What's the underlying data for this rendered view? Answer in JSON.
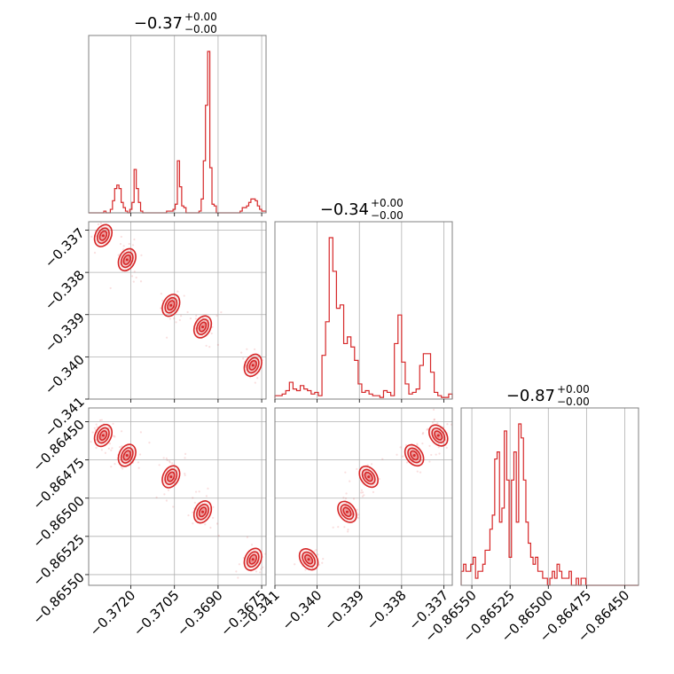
{
  "colors": {
    "accent": "#d62728",
    "grid": "#b0b0b0",
    "frame": "#808080"
  },
  "chart_data": {
    "type": "corner",
    "parameters": [
      {
        "title_value": "−0.37",
        "title_plus": "+0.00",
        "title_minus": "−0.00",
        "range": [
          -0.37345,
          -0.36735
        ],
        "ticks": [
          -0.372,
          -0.3705,
          -0.369,
          -0.3675
        ],
        "tick_labels": [
          "−0.3720",
          "−0.3705",
          "−0.3690",
          "−0.3675"
        ]
      },
      {
        "title_value": "−0.34",
        "title_plus": "+0.00",
        "title_minus": "−0.00",
        "range": [
          -0.341,
          -0.3368
        ],
        "ticks": [
          -0.341,
          -0.34,
          -0.339,
          -0.338,
          -0.337
        ],
        "tick_labels": [
          "−0.341",
          "−0.340",
          "−0.339",
          "−0.338",
          "−0.337"
        ]
      },
      {
        "title_value": "−0.87",
        "title_plus": "+0.00",
        "title_minus": "−0.00",
        "range": [
          -0.86557,
          -0.86441
        ],
        "ticks": [
          -0.8655,
          -0.86525,
          -0.865,
          -0.86475,
          -0.8645
        ],
        "tick_labels": [
          "−0.86550",
          "−0.86525",
          "−0.86500",
          "−0.86475",
          "−0.86450"
        ]
      }
    ],
    "histograms": [
      {
        "counts": [
          0,
          0,
          0,
          0,
          0,
          0,
          0,
          1,
          0,
          0,
          2,
          7,
          14,
          16,
          14,
          6,
          3,
          1,
          0,
          2,
          6,
          25,
          14,
          6,
          1,
          0,
          0,
          0,
          0,
          0,
          0,
          0,
          0,
          0,
          0,
          0,
          1,
          1,
          1,
          2,
          5,
          30,
          15,
          4,
          3,
          0,
          0,
          0,
          0,
          0,
          0,
          1,
          8,
          30,
          62,
          93,
          26,
          5,
          4,
          0,
          0,
          0,
          0,
          0,
          0,
          0,
          0,
          0,
          0,
          0,
          1,
          3,
          3,
          4,
          6,
          8,
          8,
          7,
          4,
          2,
          1,
          1
        ]
      },
      {
        "counts": [
          2,
          2,
          3,
          5,
          10,
          6,
          5,
          8,
          6,
          5,
          3,
          4,
          2,
          26,
          46,
          96,
          76,
          54,
          56,
          33,
          37,
          31,
          23,
          9,
          4,
          5,
          3,
          2,
          2,
          1,
          5,
          4,
          2,
          33,
          50,
          22,
          9,
          3,
          4,
          6,
          20,
          27,
          27,
          16,
          4,
          2,
          1,
          1,
          3
        ]
      },
      {
        "counts": [
          2,
          3,
          2,
          2,
          3,
          4,
          1,
          2,
          2,
          3,
          5,
          5,
          8,
          10,
          18,
          19,
          9,
          11,
          22,
          15,
          4,
          15,
          19,
          9,
          23,
          21,
          15,
          9,
          6,
          4,
          3,
          4,
          2,
          2,
          1,
          1,
          0,
          1,
          2,
          1,
          3,
          2,
          1,
          1,
          1,
          2,
          0,
          0,
          1,
          0,
          1,
          1,
          0,
          0,
          0,
          0,
          0,
          0,
          0,
          0,
          0,
          0,
          0,
          0,
          0,
          0,
          0,
          0,
          0,
          0,
          0,
          0,
          0,
          0
        ]
      }
    ],
    "clusters": [
      {
        "x": -0.37295,
        "y": -0.33713,
        "z": -0.86459
      },
      {
        "x": -0.37213,
        "y": -0.3377,
        "z": -0.86472
      },
      {
        "x": -0.37062,
        "y": -0.33878,
        "z": -0.86486
      },
      {
        "x": -0.36953,
        "y": -0.33929,
        "z": -0.86509
      },
      {
        "x": -0.3678,
        "y": -0.3402,
        "z": -0.8654
      }
    ]
  }
}
